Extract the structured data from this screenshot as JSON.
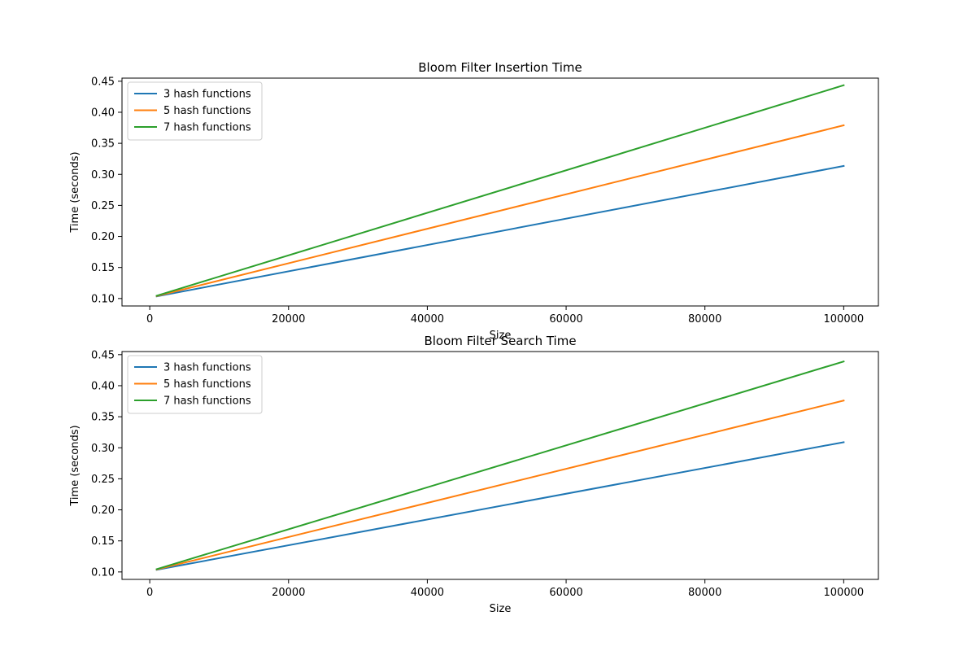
{
  "chart_data": [
    {
      "type": "line",
      "title": "Bloom Filter Insertion Time",
      "xlabel": "Size",
      "ylabel": "Time (seconds)",
      "xlim": [
        -4000,
        105000
      ],
      "ylim": [
        0.088,
        0.455
      ],
      "xticks": [
        0,
        20000,
        40000,
        60000,
        80000,
        100000
      ],
      "yticks": [
        0.1,
        0.15,
        0.2,
        0.25,
        0.3,
        0.35,
        0.4,
        0.45
      ],
      "grid": false,
      "legend": "upper-left",
      "x": [
        1000,
        100000
      ],
      "series": [
        {
          "name": "3 hash functions",
          "color": "#1f77b4",
          "values": [
            0.1035,
            0.3135
          ]
        },
        {
          "name": "5 hash functions",
          "color": "#ff7f0e",
          "values": [
            0.104,
            0.379
          ]
        },
        {
          "name": "7 hash functions",
          "color": "#2ca02c",
          "values": [
            0.1045,
            0.4435
          ]
        }
      ]
    },
    {
      "type": "line",
      "title": "Bloom Filter Search Time",
      "xlabel": "Size",
      "ylabel": "Time (seconds)",
      "xlim": [
        -4000,
        105000
      ],
      "ylim": [
        0.088,
        0.455
      ],
      "xticks": [
        0,
        20000,
        40000,
        60000,
        80000,
        100000
      ],
      "yticks": [
        0.1,
        0.15,
        0.2,
        0.25,
        0.3,
        0.35,
        0.4,
        0.45
      ],
      "grid": false,
      "legend": "upper-left",
      "x": [
        1000,
        100000
      ],
      "series": [
        {
          "name": "3 hash functions",
          "color": "#1f77b4",
          "values": [
            0.1035,
            0.309
          ]
        },
        {
          "name": "5 hash functions",
          "color": "#ff7f0e",
          "values": [
            0.104,
            0.376
          ]
        },
        {
          "name": "7 hash functions",
          "color": "#2ca02c",
          "values": [
            0.1045,
            0.439
          ]
        }
      ]
    }
  ]
}
